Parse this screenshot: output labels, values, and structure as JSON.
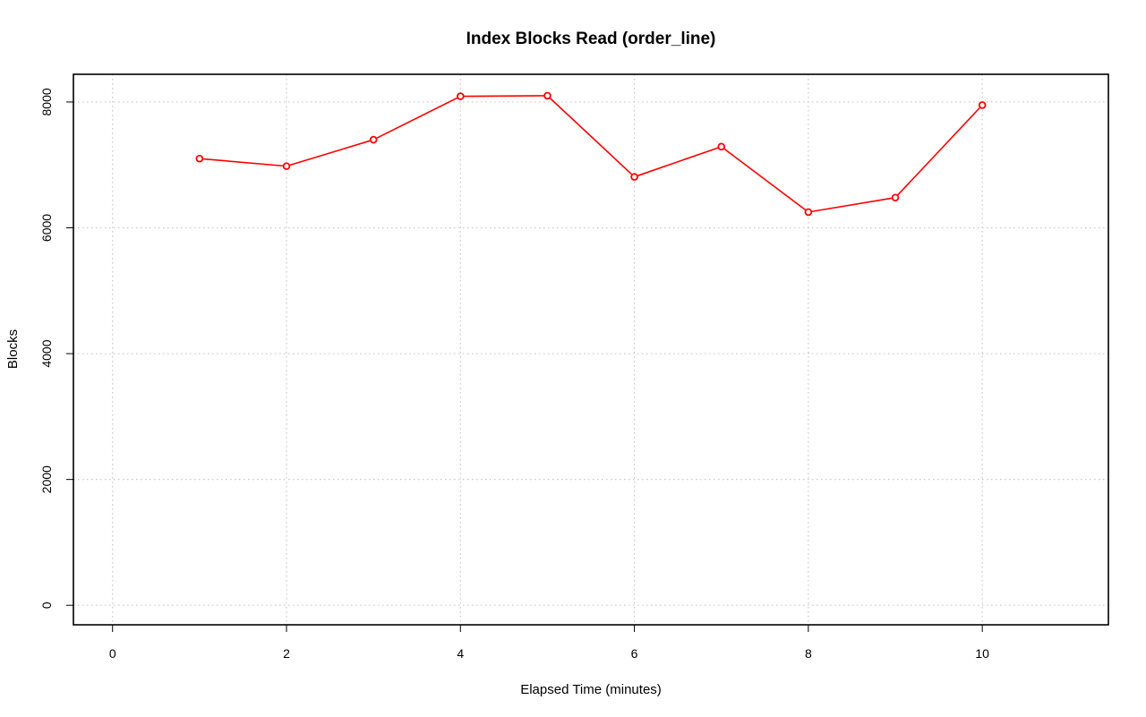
{
  "chart_data": {
    "type": "line",
    "title": "Index Blocks Read (order_line)",
    "xlabel": "Elapsed Time (minutes)",
    "ylabel": "Blocks",
    "xlim": [
      -0.45,
      11.45
    ],
    "ylim": [
      -310,
      8440
    ],
    "x_ticks": [
      0,
      2,
      4,
      6,
      8,
      10
    ],
    "y_ticks": [
      0,
      2000,
      4000,
      6000,
      8000
    ],
    "grid": true,
    "legend": "none",
    "series": [
      {
        "color": "#ff0000",
        "marker": "open-circle",
        "x": [
          1,
          2,
          3,
          4,
          5,
          6,
          7,
          8,
          9,
          10
        ],
        "y": [
          7100,
          6980,
          7400,
          8090,
          8100,
          6810,
          7290,
          6250,
          6480,
          7950
        ]
      }
    ]
  }
}
